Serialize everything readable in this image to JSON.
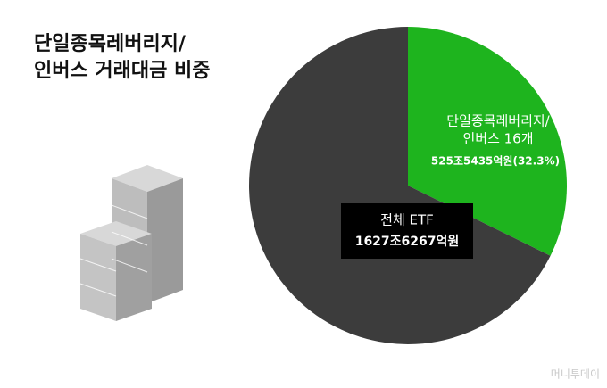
{
  "chart_data": {
    "type": "pie",
    "title_lines": [
      "단일종목레버리지/",
      "인버스 거래대금 비중"
    ],
    "series": [
      {
        "name": null,
        "values": [
          32.3,
          67.7
        ],
        "colors": [
          "#1eb41e",
          "#3c3c3c"
        ]
      }
    ],
    "slice_label_lines": [
      "단일종목레버리지/",
      "인버스 16개"
    ],
    "value_labels": [
      "525조5435억원(32.3%)",
      null
    ],
    "total_name": "전체 ETF",
    "total_label": "1627조6267억원",
    "watermark": "머니투데이"
  }
}
